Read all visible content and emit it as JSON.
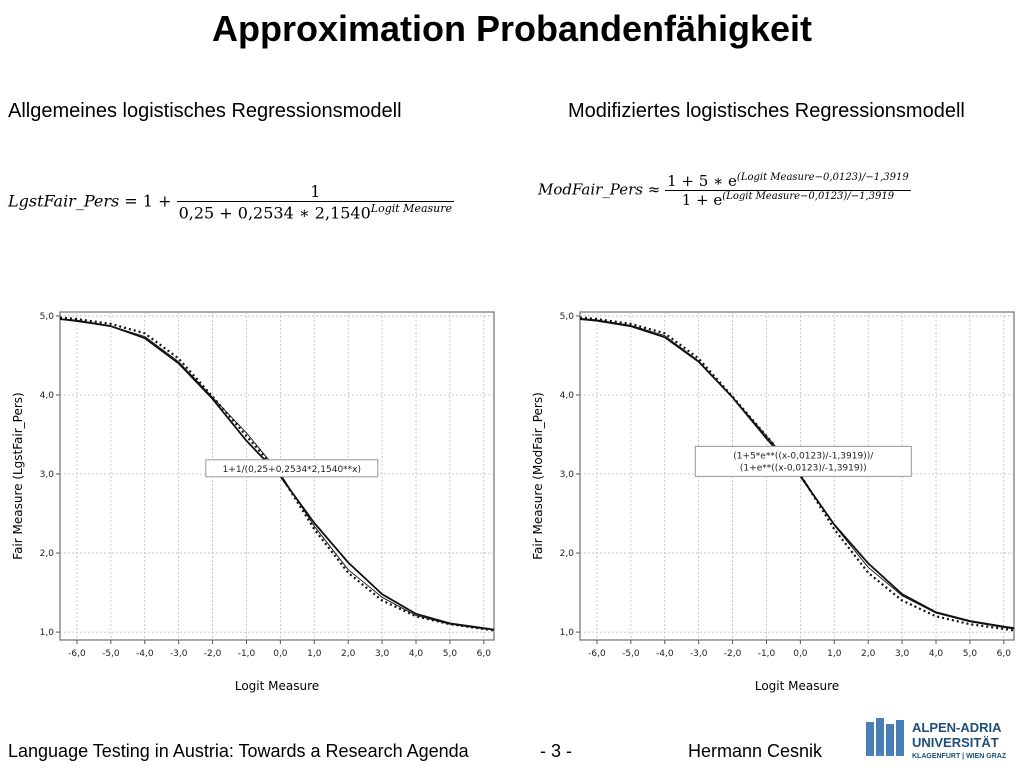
{
  "slide": {
    "title": "Approximation Probandenfähigkeit",
    "left_heading": "Allgemeines logistisches Regressionsmodell",
    "right_heading": "Modifiziertes logistisches Regressionsmodell",
    "footer_left": "Language Testing in Austria: Towards a Research Agenda",
    "footer_page": "- 3 -",
    "footer_author": "Hermann Cesnik",
    "logo_line1": "ALPEN-ADRIA",
    "logo_line2": "UNIVERSITÄT",
    "logo_line3": "KLAGENFURT | WIEN GRAZ"
  },
  "formula_left": {
    "lhs": "LgstFair_Pers",
    "eq": "=",
    "one_plus": "1 +",
    "numerator": "1",
    "denominator_base": "0,25 + 0,2534 ∗ 2,1540",
    "exponent": "Logit Measure"
  },
  "formula_right": {
    "lhs": "ModFair_Pers",
    "approx": "≈",
    "numerator_base": "1 + 5 ∗ e",
    "denominator_base": "1 + e",
    "exponent_num": "(Logit Measure−0,0123)",
    "exponent_den": "−1,3919"
  },
  "chart_data": [
    {
      "type": "line",
      "xlabel": "Logit Measure",
      "ylabel": "Fair Measure (LgstFair_Pers)",
      "xlim": [
        -6.5,
        6.3
      ],
      "ylim": [
        0.9,
        5.05
      ],
      "xticks": [
        "-6,0",
        "-5,0",
        "-4,0",
        "-3,0",
        "-2,0",
        "-1,0",
        "0,0",
        "1,0",
        "2,0",
        "3,0",
        "4,0",
        "5,0",
        "6,0"
      ],
      "yticks": [
        "1,0",
        "2,0",
        "3,0",
        "4,0",
        "5,0"
      ],
      "grid": true,
      "annotation": "1+1/(0,25+0,2534*2,1540**x)",
      "series": [
        {
          "style": "solid",
          "x": [
            -6.5,
            -6,
            -5,
            -4,
            -3,
            -2,
            -1,
            0,
            1,
            2,
            3,
            4,
            5,
            6,
            6.3
          ],
          "y": [
            4.96,
            4.94,
            4.87,
            4.72,
            4.4,
            3.95,
            3.42,
            2.97,
            2.38,
            1.88,
            1.48,
            1.23,
            1.11,
            1.05,
            1.03
          ]
        },
        {
          "style": "dotted",
          "x": [
            -6.5,
            -6,
            -5,
            -4,
            -3,
            -2,
            -1,
            0,
            1,
            2,
            3,
            4,
            5,
            6,
            6.3
          ],
          "y": [
            4.98,
            4.96,
            4.9,
            4.78,
            4.46,
            3.98,
            3.48,
            2.99,
            2.3,
            1.75,
            1.4,
            1.2,
            1.1,
            1.04,
            1.02
          ]
        },
        {
          "style": "thin",
          "x": [
            -6.5,
            -6,
            -5,
            -4,
            -3,
            -2,
            -1,
            0,
            1,
            2,
            3,
            4,
            5,
            6,
            6.3
          ],
          "y": [
            4.96,
            4.93,
            4.87,
            4.74,
            4.42,
            3.97,
            3.52,
            3.0,
            2.34,
            1.79,
            1.44,
            1.21,
            1.1,
            1.04,
            1.03
          ]
        }
      ]
    },
    {
      "type": "line",
      "xlabel": "Logit Measure",
      "ylabel": "Fair Measure (ModFair_Pers)",
      "xlim": [
        -6.5,
        6.3
      ],
      "ylim": [
        0.9,
        5.05
      ],
      "xticks": [
        "-6,0",
        "-5,0",
        "-4,0",
        "-3,0",
        "-2,0",
        "-1,0",
        "0,0",
        "1,0",
        "2,0",
        "3,0",
        "4,0",
        "5,0",
        "6,0"
      ],
      "yticks": [
        "1,0",
        "2,0",
        "3,0",
        "4,0",
        "5,0"
      ],
      "grid": true,
      "annotation": "(1+5*e**((x-0,0123)/-1,3919))/(1+e**((x-0,0123)/-1,3919))",
      "series": [
        {
          "style": "solid",
          "x": [
            -6.5,
            -6,
            -5,
            -4,
            -3,
            -2,
            -1,
            0,
            1,
            2,
            3,
            4,
            5,
            6,
            6.3
          ],
          "y": [
            4.96,
            4.94,
            4.87,
            4.73,
            4.42,
            3.97,
            3.45,
            2.97,
            2.36,
            1.87,
            1.48,
            1.25,
            1.14,
            1.07,
            1.05
          ]
        },
        {
          "style": "dotted",
          "x": [
            -6.5,
            -6,
            -5,
            -4,
            -3,
            -2,
            -1,
            0,
            1,
            2,
            3,
            4,
            5,
            6,
            6.3
          ],
          "y": [
            4.98,
            4.96,
            4.9,
            4.78,
            4.46,
            3.98,
            3.48,
            2.99,
            2.3,
            1.75,
            1.4,
            1.2,
            1.1,
            1.04,
            1.02
          ]
        },
        {
          "style": "thin",
          "x": [
            -6.5,
            -6,
            -5,
            -4,
            -3,
            -2,
            -1,
            0,
            1,
            2,
            3,
            4,
            5,
            6,
            6.3
          ],
          "y": [
            4.97,
            4.95,
            4.88,
            4.75,
            4.43,
            3.97,
            3.48,
            2.99,
            2.35,
            1.82,
            1.46,
            1.24,
            1.13,
            1.06,
            1.04
          ]
        }
      ]
    }
  ]
}
